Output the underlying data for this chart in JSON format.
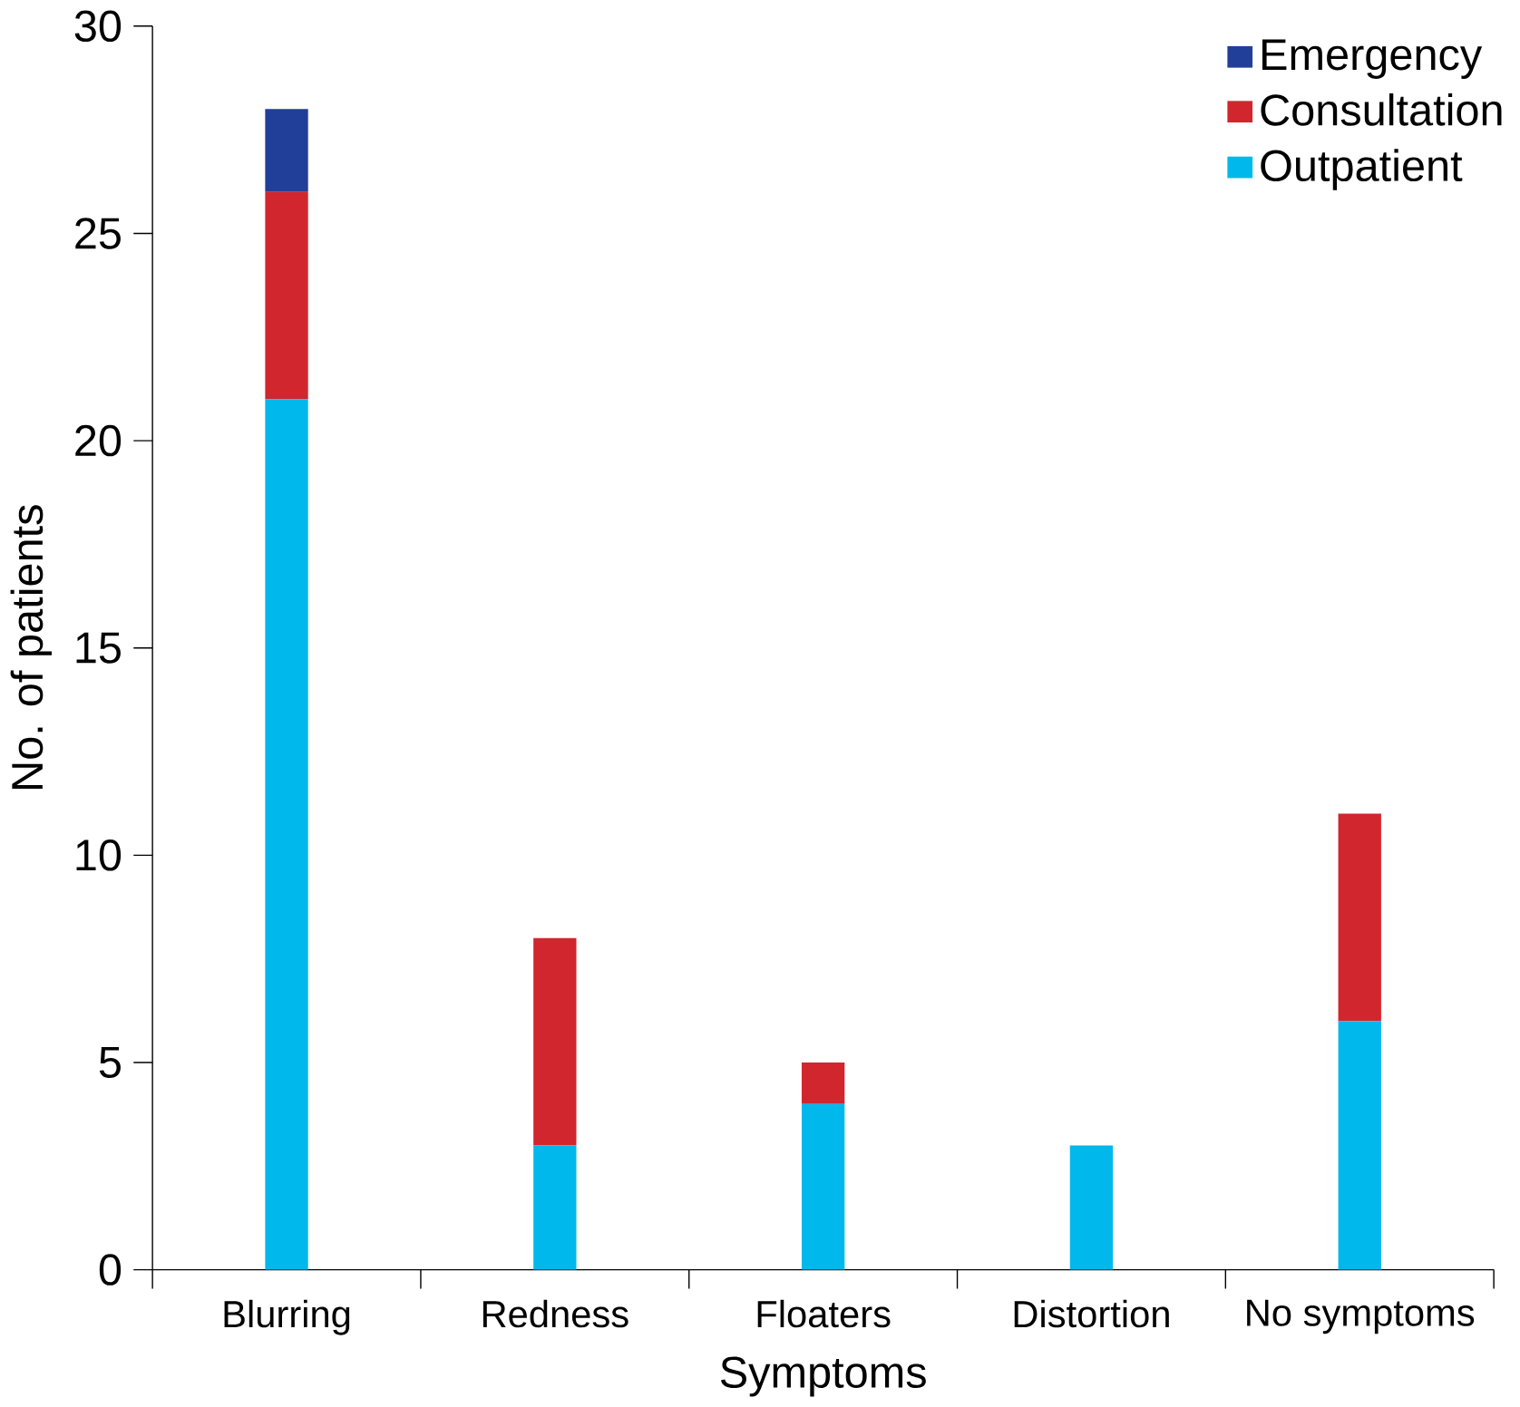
{
  "chart_data": {
    "type": "bar",
    "stacked": true,
    "xlabel": "Symptoms",
    "ylabel": "No. of patients",
    "categories": [
      "Blurring",
      "Redness",
      "Floaters",
      "Distortion",
      "No symptoms"
    ],
    "series": [
      {
        "name": "Outpatient",
        "color": "#00b8ec",
        "values": [
          21,
          3,
          4,
          3,
          6
        ]
      },
      {
        "name": "Consultation",
        "color": "#d1262d",
        "values": [
          5,
          5,
          1,
          0,
          5
        ]
      },
      {
        "name": "Emergency",
        "color": "#213f99",
        "values": [
          2,
          0,
          0,
          0,
          0
        ]
      }
    ],
    "ylim": [
      0,
      30
    ],
    "yticks": [
      0,
      5,
      10,
      15,
      20,
      25,
      30
    ],
    "grid": false,
    "legend": "top right"
  }
}
